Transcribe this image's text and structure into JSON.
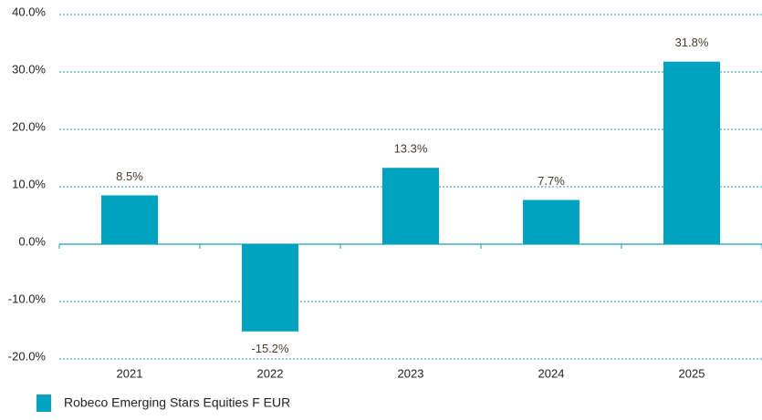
{
  "chart_data": {
    "type": "bar",
    "categories": [
      "2021",
      "2022",
      "2023",
      "2024",
      "2025"
    ],
    "series": [
      {
        "name": "Robeco Emerging Stars Equities F EUR",
        "color": "#00a3bf",
        "values": [
          8.5,
          -15.2,
          13.3,
          7.7,
          31.8
        ],
        "value_labels": [
          "8.5%",
          "-15.2%",
          "13.3%",
          "7.7%",
          "31.8%"
        ]
      }
    ],
    "ylim": [
      -20,
      40
    ],
    "yticks": [
      {
        "value": -20,
        "label": "-20.0%"
      },
      {
        "value": -10,
        "label": "-10.0%"
      },
      {
        "value": 0,
        "label": "0.0%"
      },
      {
        "value": 10,
        "label": "10.0%"
      },
      {
        "value": 20,
        "label": "20.0%"
      },
      {
        "value": 30,
        "label": "30.0%"
      },
      {
        "value": 40,
        "label": "40.0%"
      }
    ],
    "grid": true
  }
}
